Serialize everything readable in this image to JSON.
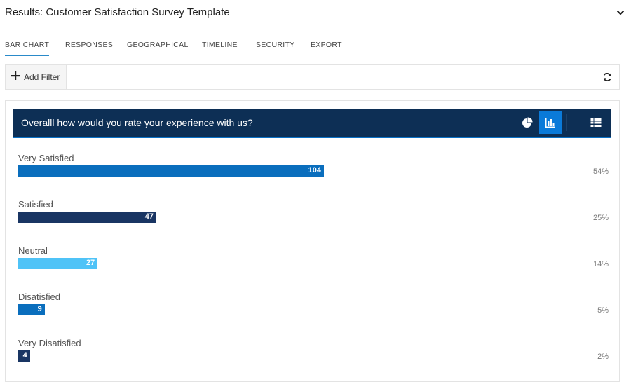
{
  "header": {
    "title": "Results: Customer Satisfaction Survey Template",
    "collapse_icon": "chevron-down-icon"
  },
  "tabs": [
    {
      "label": "BAR CHART",
      "active": true
    },
    {
      "label": "RESPONSES",
      "active": false
    },
    {
      "label": "GEOGRAPHICAL",
      "active": false
    },
    {
      "label": "TIMELINE",
      "active": false
    },
    {
      "label": "SECURITY",
      "active": false
    },
    {
      "label": "EXPORT",
      "active": false
    }
  ],
  "filter_bar": {
    "add_filter_label": "Add Filter",
    "add_icon": "plus-icon",
    "refresh_icon": "refresh-icon"
  },
  "question": {
    "title": "Overalll how would you rate your experience with us?",
    "view_buttons": [
      {
        "icon": "pie-chart-icon",
        "active": false
      },
      {
        "icon": "bar-chart-icon",
        "active": true
      },
      {
        "icon": "table-icon",
        "active": false
      }
    ]
  },
  "colors": {
    "header_bg": "#0d2f55",
    "accent": "#0a7ad9"
  },
  "chart_data": {
    "type": "bar",
    "orientation": "horizontal",
    "categories": [
      "Very Satisfied",
      "Satisfied",
      "Neutral",
      "Disatisfied",
      "Very Disatisfied"
    ],
    "values": [
      104,
      47,
      27,
      9,
      4
    ],
    "percentages": [
      "54%",
      "25%",
      "14%",
      "5%",
      "2%"
    ],
    "colors": [
      "#0a6ebd",
      "#193563",
      "#4fc3f7",
      "#0a6ebd",
      "#193563"
    ],
    "xlim": [
      0,
      104
    ]
  }
}
